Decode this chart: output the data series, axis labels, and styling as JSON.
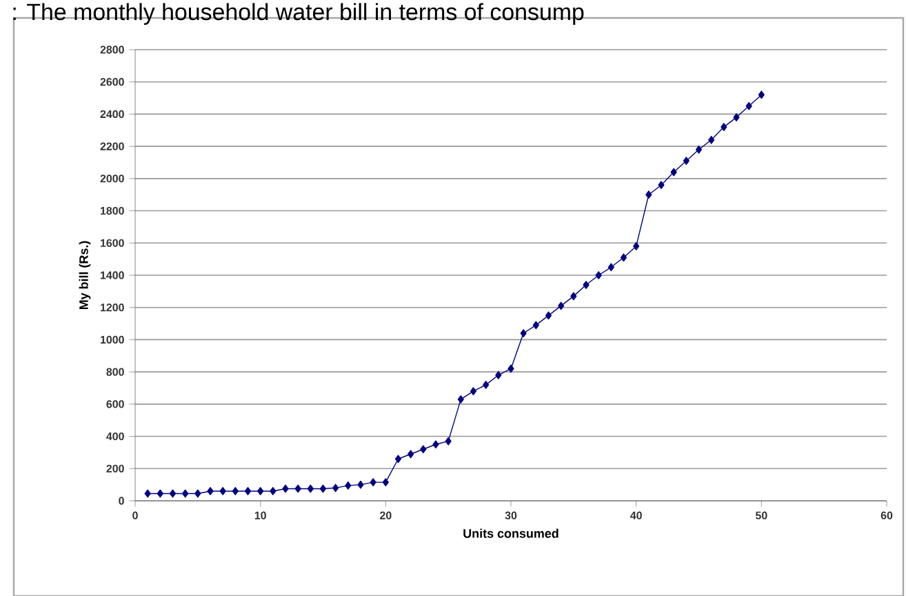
{
  "chart_data": {
    "type": "line",
    "title": ": The monthly household water bill in terms of consump",
    "xlabel": "Units consumed",
    "ylabel": "My bill (Rs.)",
    "x": [
      1,
      2,
      3,
      4,
      5,
      6,
      7,
      8,
      9,
      10,
      11,
      12,
      13,
      14,
      15,
      16,
      17,
      18,
      19,
      20,
      21,
      22,
      23,
      24,
      25,
      26,
      27,
      28,
      29,
      30,
      31,
      32,
      33,
      34,
      35,
      36,
      37,
      38,
      39,
      40,
      41,
      42,
      43,
      44,
      45,
      46,
      47,
      48,
      49,
      50
    ],
    "series": [
      {
        "color": "#000080",
        "values": [
          45,
          45,
          45,
          45,
          45,
          60,
          60,
          60,
          60,
          60,
          60,
          75,
          75,
          75,
          75,
          80,
          95,
          100,
          115,
          115,
          260,
          290,
          320,
          350,
          370,
          630,
          680,
          720,
          780,
          820,
          1040,
          1090,
          1150,
          1210,
          1270,
          1340,
          1400,
          1450,
          1510,
          1580,
          1900,
          1960,
          2040,
          2110,
          2180,
          2240,
          2320,
          2380,
          2450,
          2520
        ]
      }
    ],
    "xlim": [
      0,
      60
    ],
    "xticks": [
      0,
      10,
      20,
      30,
      40,
      50,
      60
    ],
    "ylim": [
      0,
      2800
    ],
    "yticks": [
      0,
      200,
      400,
      600,
      800,
      1000,
      1200,
      1400,
      1600,
      1800,
      2000,
      2200,
      2400,
      2600,
      2800
    ],
    "grid": "y",
    "marker": "diamond",
    "line_style": "solid"
  }
}
